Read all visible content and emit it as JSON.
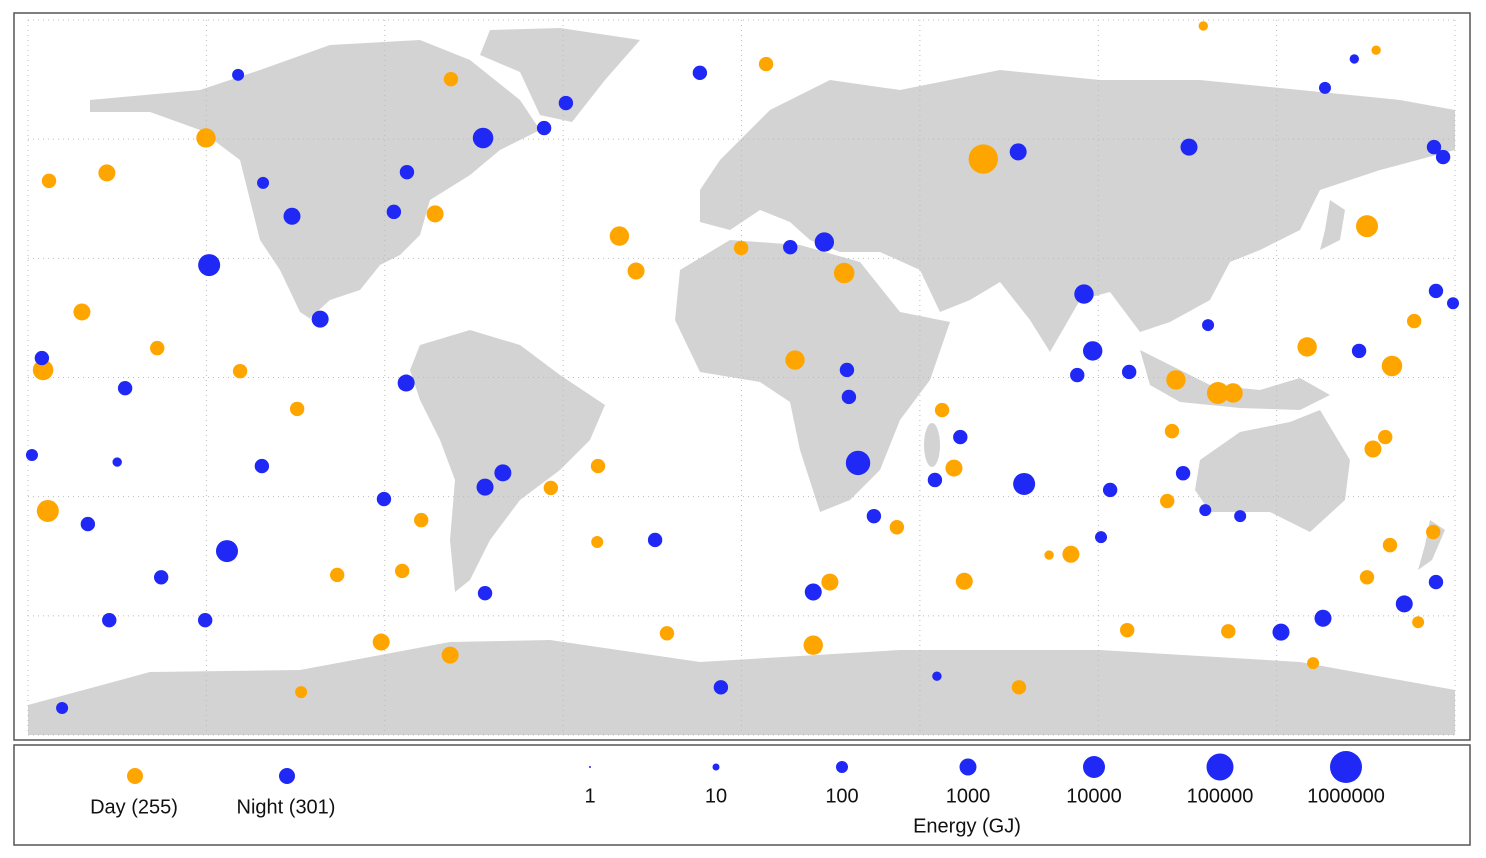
{
  "chart_data": {
    "type": "geo-scatter",
    "xlim": [
      -180,
      180
    ],
    "ylim": [
      -90,
      90
    ],
    "xticks": [
      -180,
      -135,
      -90,
      -45,
      0,
      45,
      90,
      135,
      180
    ],
    "yticks": [
      -90,
      -60,
      -30,
      0,
      30,
      60,
      90
    ],
    "grid": true,
    "series": [
      {
        "name": "Day (255)",
        "color": "#ffa500",
        "x": [
          61,
          -175,
          -135.1,
          157.8,
          120.2,
          124,
          109.6,
          25.9,
          -30.8,
          -26.6,
          -77.3,
          -176.2,
          18.1,
          22.3,
          56.2,
          83.1,
          142.7,
          164.1,
          159.3,
          162.4,
          6.2,
          116.5,
          -111.1,
          -73.5,
          -90.9,
          70,
          -18.8,
          -166.4,
          -160.1,
          -174.7,
          -73.3,
          160.1,
          169.7,
          174.5,
          170.7,
          163.6,
          157.8,
          144.2,
          122.8,
          97.3,
          107.4,
          108.6,
          53.6,
          50.6,
          39.2,
          13.5,
          -0.1,
          -36.4,
          -36.2,
          -48.1,
          -80.8,
          -85.6,
          -102,
          -112.1,
          -126.5,
          -147.4,
          77.6
        ],
        "values": [
          55,
          -33.6,
          60.3,
          38.1,
          -3.9,
          -3.9,
          -0.6,
          26.3,
          35.6,
          26.8,
          41.2,
          1.9,
          -67.4,
          -51.5,
          -51.3,
          -44.5,
          7.7,
          2.9,
          -18,
          -15,
          78.9,
          88.5,
          -79.2,
          -69.9,
          -66.6,
          -78,
          -64.4,
          16.5,
          51.5,
          49.5,
          75.1,
          82.4,
          14.2,
          -38.9,
          -61.6,
          -42.2,
          -50.3,
          -71.9,
          -63.9,
          -63.6,
          -31.1,
          -13.5,
          -22.8,
          -8.2,
          -37.7,
          4.4,
          32.6,
          -41.4,
          -22.3,
          -27.8,
          -35.9,
          -48.7,
          -49.7,
          -7.9,
          1.6,
          7.4,
          -44.7
        ],
        "size": [
          300000,
          10000,
          3000,
          10000,
          10000,
          3000,
          3000,
          5000,
          3000,
          1000,
          1000,
          5000,
          3000,
          1000,
          1000,
          1000,
          3000,
          5000,
          1000,
          300,
          300,
          30,
          100,
          1000,
          1000,
          300,
          300,
          1000,
          1000,
          300,
          300,
          30,
          300,
          300,
          100,
          300,
          300,
          100,
          300,
          300,
          300,
          300,
          1000,
          300,
          300,
          3000,
          300,
          100,
          300,
          300,
          300,
          300,
          300,
          300,
          300,
          300,
          30
        ]
      },
      {
        "name": "Night (301)",
        "color": "#1f28f5",
        "x": [
          29.4,
          71.3,
          -134.3,
          -129.8,
          -65.2,
          20.9,
          112.9,
          69.8,
          86.4,
          88.6,
          -106.3,
          -113.4,
          -84.6,
          -60.2,
          -64.7,
          18.1,
          136.1,
          146.7,
          167.2,
          155.8,
          174.7,
          -10.5,
          -171.4,
          -64.7,
          -5.2,
          49.3,
          -159.5,
          -135.3,
          -146.4,
          -164.9,
          -176.5,
          -120.7,
          -84.4,
          -87.7,
          -44.3,
          -49.8,
          -127,
          154.6,
          147.2,
          177,
          179.5,
          175.2,
          175.2,
          90.7,
          93,
          111.4,
          48.8,
          55.2,
          33.4,
          26.6,
          27.1,
          12.3,
          -21.8,
          -90.2,
          -121,
          -155.5,
          -179,
          -157.5,
          117,
          125.8,
          117.7,
          97.8,
          84.7
        ],
        "values": [
          -21.5,
          -26.8,
          28.3,
          -43.7,
          60.3,
          34.1,
          58,
          56.8,
          21,
          6.7,
          14.7,
          40.6,
          -1.4,
          -24,
          -27.6,
          -54,
          -64.1,
          -60.6,
          -57,
          6.7,
          58,
          76.7,
          -83.2,
          -54.3,
          -78,
          -75.2,
          -61.1,
          -61.1,
          -50.3,
          -36.9,
          4.9,
          49,
          51.7,
          41.7,
          69.1,
          62.8,
          76.2,
          80.2,
          72.9,
          55.5,
          18.7,
          21.8,
          -51.5,
          -40.2,
          -28.3,
          -24.1,
          -25.8,
          -15,
          -34.9,
          1.9,
          -4.9,
          32.8,
          -40.9,
          -30.6,
          -22.3,
          -2.7,
          -19.5,
          -21.3,
          -33.4,
          -34.9,
          13.2,
          1.4,
          0.6
        ],
        "size": [
          30000,
          10000,
          10000,
          10000,
          5000,
          3000,
          1000,
          1000,
          3000,
          3000,
          1000,
          1000,
          1000,
          1000,
          1000,
          1000,
          1000,
          1000,
          1000,
          300,
          300,
          300,
          100,
          300,
          300,
          30,
          300,
          300,
          300,
          300,
          300,
          100,
          300,
          300,
          300,
          300,
          100,
          30,
          100,
          300,
          100,
          300,
          300,
          100,
          300,
          300,
          300,
          300,
          300,
          300,
          300,
          300,
          300,
          300,
          300,
          300,
          100,
          30,
          100,
          100,
          100,
          300,
          300
        ]
      }
    ],
    "size_legend": {
      "title": "Energy (GJ)",
      "values": [
        1,
        10,
        100,
        1000,
        10000,
        100000,
        1000000
      ]
    }
  }
}
